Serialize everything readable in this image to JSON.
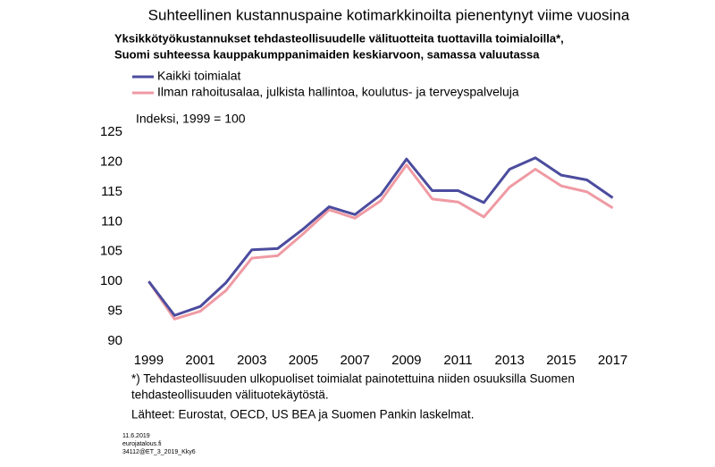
{
  "chart_data": {
    "type": "line",
    "title": "Suhteellinen kustannuspaine kotimarkkinoilta pienentynyt viime vuosina",
    "subtitle": [
      "Yksikkötyökustannukset tehdasteollisuudelle välituotteita tuottavilla toimialoilla*,",
      "Suomi suhteessa kauppakumppanimaiden keskiarvoon, samassa valuutassa"
    ],
    "ylabel": "Indeksi, 1999 = 100",
    "x": [
      1999,
      2000,
      2001,
      2002,
      2003,
      2004,
      2005,
      2006,
      2007,
      2008,
      2009,
      2010,
      2011,
      2012,
      2013,
      2014,
      2015,
      2016,
      2017
    ],
    "series": [
      {
        "name": "Kaikki toimialat",
        "color": "#4b4c9e",
        "values": [
          100,
          94.3,
          95.8,
          99.8,
          105.3,
          105.5,
          108.8,
          112.5,
          111.2,
          114.5,
          120.5,
          115.2,
          115.2,
          113.2,
          118.8,
          120.7,
          117.8,
          117.0,
          114.0
        ]
      },
      {
        "name": "Ilman rahoitusalaa, julkista hallintoa, koulutus- ja terveyspalveluja",
        "color": "#ef9aa3",
        "values": [
          100,
          93.7,
          95.0,
          98.5,
          103.9,
          104.3,
          108.0,
          112.0,
          110.6,
          113.5,
          119.5,
          113.8,
          113.3,
          110.8,
          115.8,
          118.8,
          116.0,
          115.0,
          112.3
        ]
      }
    ],
    "xlim": [
      1998.5,
      2017.5
    ],
    "xticks": [
      1999,
      2001,
      2003,
      2005,
      2007,
      2009,
      2011,
      2013,
      2015,
      2017
    ],
    "ylim": [
      90,
      125
    ],
    "yticks": [
      90,
      95,
      100,
      105,
      110,
      115,
      120,
      125
    ],
    "footnote": [
      "*) Tehdasteollisuuden ulkopuoliset toimialat painotettuina niiden osuuksilla Suomen",
      "tehdasteollisuuden välituotekäytöstä."
    ],
    "source": "Lähteet: Eurostat, OECD, US BEA ja Suomen Pankin laskelmat.",
    "notes": [
      "11.6.2019",
      "eurojatalous.fi",
      "34112@ET_3_2019_Kky6"
    ]
  }
}
